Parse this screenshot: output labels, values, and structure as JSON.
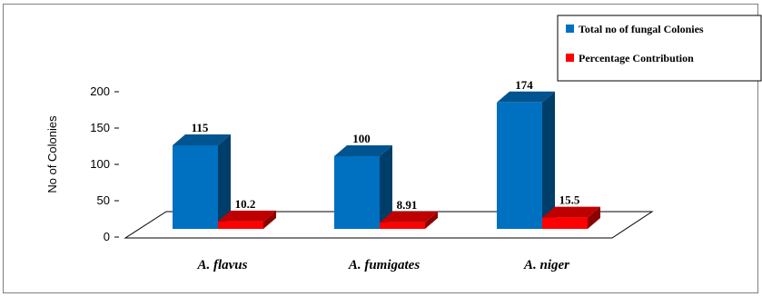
{
  "chart_data": {
    "type": "bar",
    "categories": [
      "A. flavus",
      "A. fumigates",
      "A. niger"
    ],
    "series": [
      {
        "name": "Total no  of fungal Colonies",
        "values": [
          115,
          100,
          174
        ],
        "labels": [
          "115",
          "100",
          "174"
        ],
        "color": "#0070C0"
      },
      {
        "name": "Percentage Contribution",
        "values": [
          10.2,
          8.91,
          15.5
        ],
        "labels": [
          "10.2",
          "8.91",
          "15.5"
        ],
        "color": "#FF0000"
      }
    ],
    "title": "",
    "xlabel": "",
    "ylabel": "No of Colonies",
    "ylim": [
      0,
      200
    ],
    "yticks": [
      0,
      50,
      100,
      150,
      200
    ],
    "grid": false,
    "legend_position": "top-right",
    "three_d": true
  }
}
